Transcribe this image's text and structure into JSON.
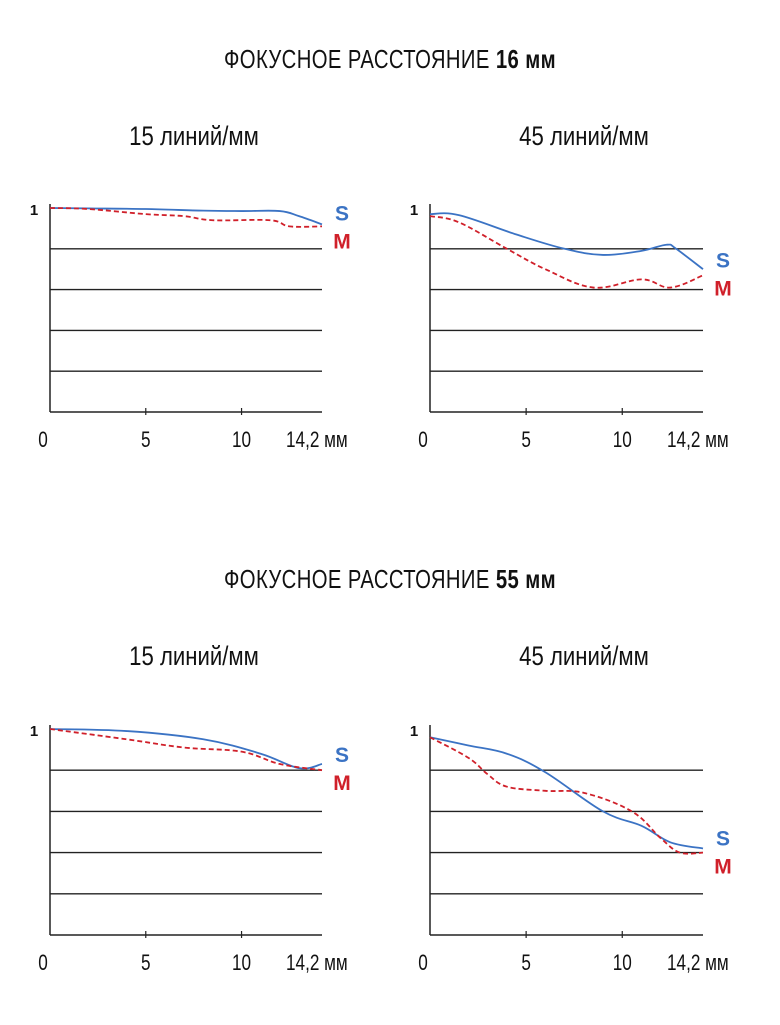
{
  "colors": {
    "S": "#3b73c4",
    "M": "#d0202a",
    "axis": "#222222"
  },
  "sections": [
    {
      "title_prefix": "ФОКУСНОЕ РАССТОЯНИЕ ",
      "title_value": "16 мм"
    },
    {
      "title_prefix": "ФОКУСНОЕ РАССТОЯНИЕ ",
      "title_value": "55 мм"
    }
  ],
  "chart_data": [
    {
      "type": "line",
      "title": "15 линий/мм",
      "section": "ФОКУСНОЕ РАССТОЯНИЕ 16 мм",
      "xlim": [
        0,
        14.2
      ],
      "ylim": [
        0,
        1
      ],
      "x_ticks": [
        "0",
        "5",
        "10",
        "14,2 мм"
      ],
      "y_tick_label": "1",
      "grid": true,
      "series": [
        {
          "name": "S",
          "style": "solid",
          "x": [
            0,
            2,
            5,
            8,
            10,
            12,
            13,
            14.2
          ],
          "y": [
            1,
            0.998,
            0.995,
            0.987,
            0.985,
            0.985,
            0.96,
            0.92
          ]
        },
        {
          "name": "M",
          "style": "dashed",
          "x": [
            0,
            2,
            5,
            7,
            8.5,
            11.5,
            12.5,
            14.2
          ],
          "y": [
            1,
            0.995,
            0.97,
            0.96,
            0.94,
            0.94,
            0.91,
            0.91
          ]
        }
      ]
    },
    {
      "type": "line",
      "title": "45 линий/мм",
      "section": "ФОКУСНОЕ РАССТОЯНИЕ 16 мм",
      "xlim": [
        0,
        14.2
      ],
      "ylim": [
        0,
        1
      ],
      "x_ticks": [
        "0",
        "5",
        "10",
        "14,2 мм"
      ],
      "y_tick_label": "1",
      "grid": true,
      "series": [
        {
          "name": "S",
          "style": "solid",
          "x": [
            0,
            1.5,
            4.5,
            7,
            9,
            11,
            12.3,
            12.8,
            14.2
          ],
          "y": [
            0.97,
            0.965,
            0.87,
            0.8,
            0.77,
            0.79,
            0.82,
            0.8,
            0.7
          ]
        },
        {
          "name": "M",
          "style": "dashed",
          "x": [
            0,
            1.5,
            4,
            6,
            8.5,
            11,
            12.5,
            14.2
          ],
          "y": [
            0.96,
            0.93,
            0.8,
            0.7,
            0.61,
            0.65,
            0.61,
            0.67
          ]
        }
      ]
    },
    {
      "type": "line",
      "title": "15 линий/мм",
      "section": "ФОКУСНОЕ РАССТОЯНИЕ 55 мм",
      "xlim": [
        0,
        14.2
      ],
      "ylim": [
        0,
        1
      ],
      "x_ticks": [
        "0",
        "5",
        "10",
        "14,2 мм"
      ],
      "y_tick_label": "1",
      "grid": true,
      "series": [
        {
          "name": "S",
          "style": "solid",
          "x": [
            0,
            4,
            8,
            11,
            13,
            14.2
          ],
          "y": [
            1,
            0.99,
            0.95,
            0.88,
            0.81,
            0.83
          ]
        },
        {
          "name": "M",
          "style": "dashed",
          "x": [
            0,
            4,
            7,
            10,
            12,
            14.2
          ],
          "y": [
            1,
            0.95,
            0.91,
            0.89,
            0.83,
            0.8
          ]
        }
      ]
    },
    {
      "type": "line",
      "title": "45 линий/мм",
      "section": "ФОКУСНОЕ РАССТОЯНИЕ 55 мм",
      "xlim": [
        0,
        14.2
      ],
      "ylim": [
        0,
        1
      ],
      "x_ticks": [
        "0",
        "5",
        "10",
        "14,2 мм"
      ],
      "y_tick_label": "1",
      "grid": true,
      "series": [
        {
          "name": "S",
          "style": "solid",
          "x": [
            0,
            2,
            4,
            6,
            9,
            11,
            12.5,
            14.2
          ],
          "y": [
            0.96,
            0.92,
            0.88,
            0.79,
            0.6,
            0.53,
            0.45,
            0.42
          ]
        },
        {
          "name": "M",
          "style": "dashed",
          "x": [
            0,
            2,
            3,
            4,
            6,
            8,
            10.5,
            12,
            13,
            14.2
          ],
          "y": [
            0.96,
            0.86,
            0.78,
            0.72,
            0.7,
            0.69,
            0.6,
            0.47,
            0.4,
            0.4
          ]
        }
      ]
    }
  ]
}
